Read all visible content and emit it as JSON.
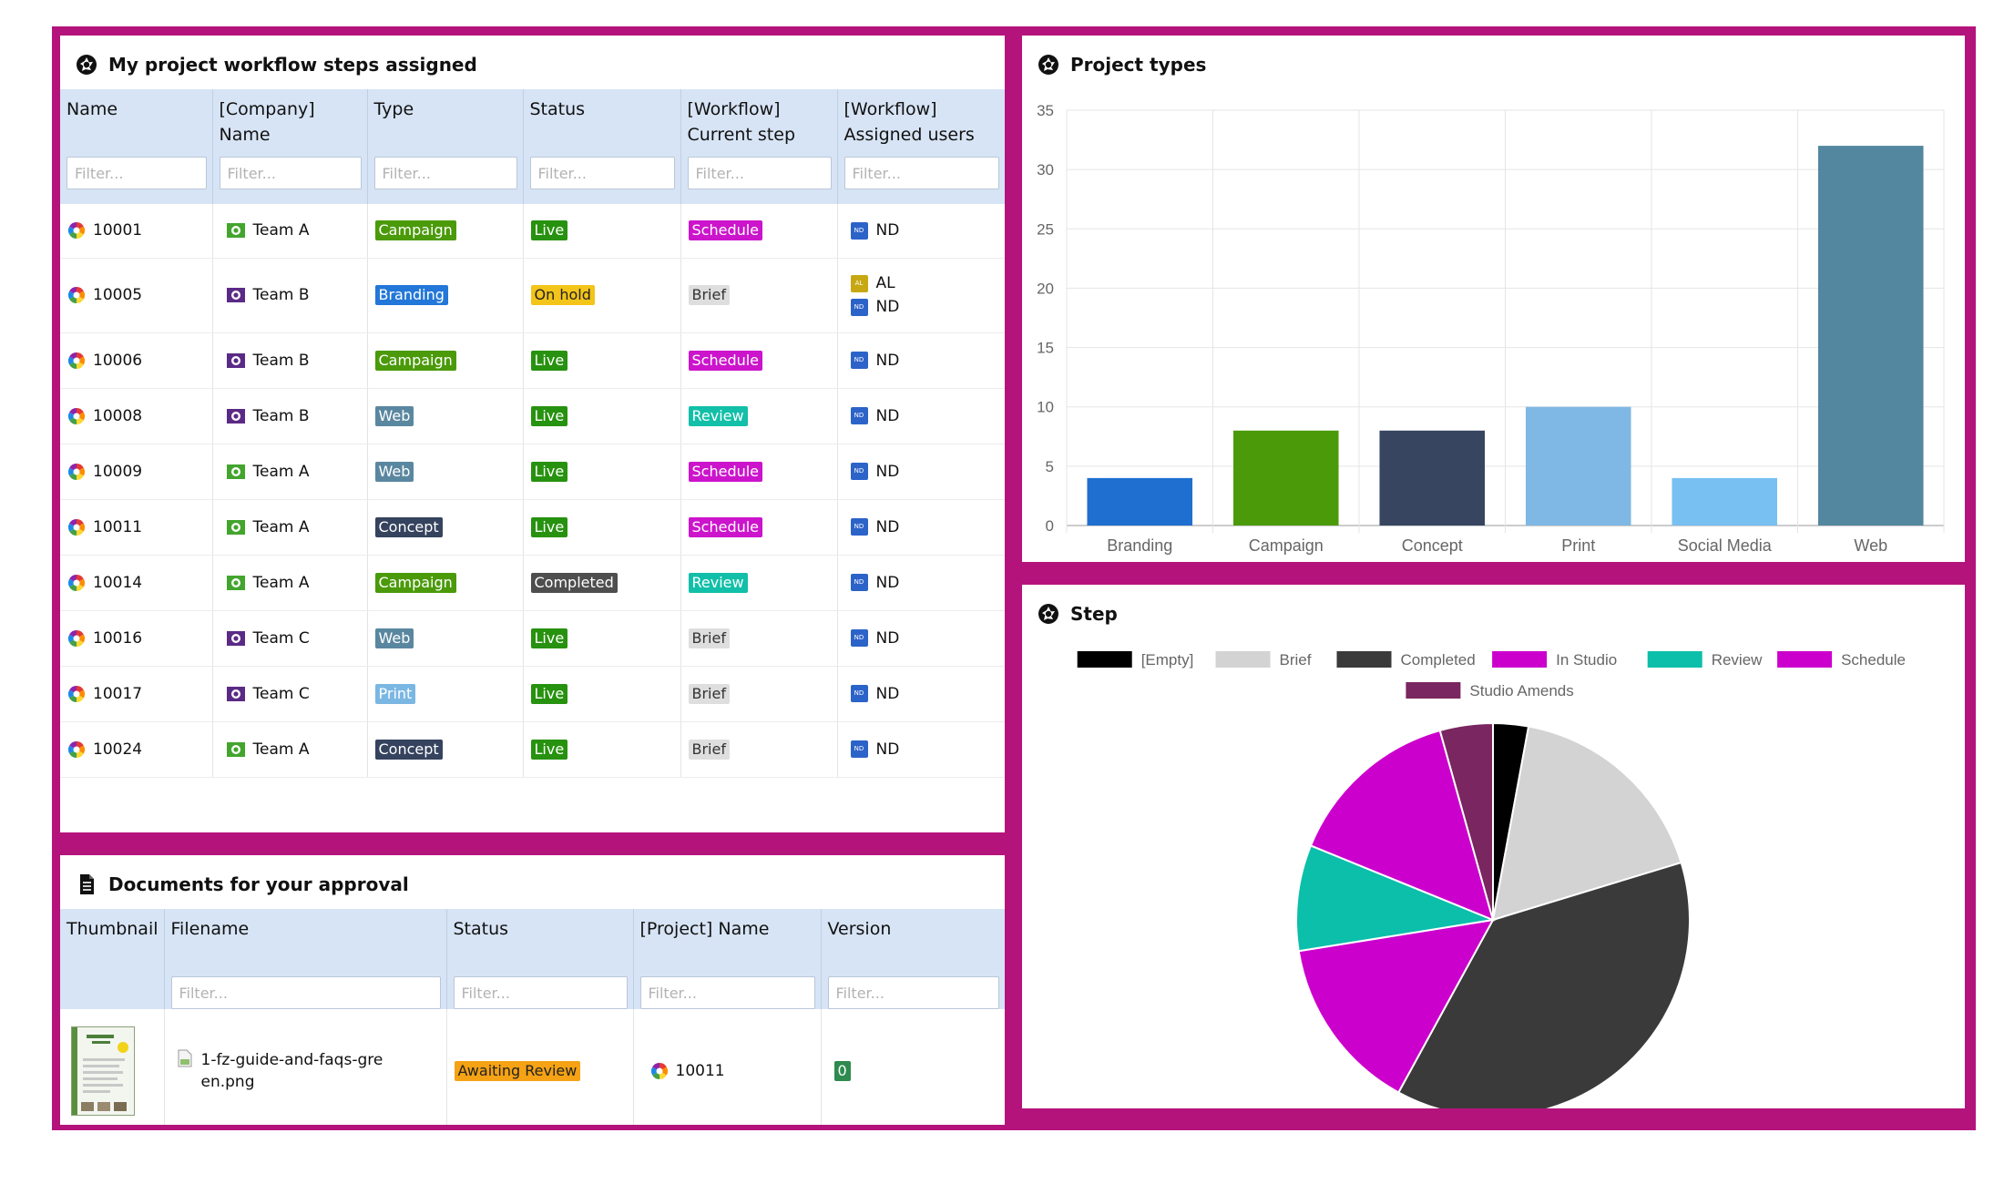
{
  "workflow_panel": {
    "title": "My project workflow steps assigned",
    "columns": [
      "Name",
      "[Company]\nName",
      "Type",
      "Status",
      "[Workflow]\nCurrent step",
      "[Workflow]\nAssigned users"
    ],
    "filter_placeholder": "Filter...",
    "rows": [
      {
        "name": "10001",
        "team": "Team A",
        "team_color": "#43a52e",
        "type": "Campaign",
        "type_color": "#4b9a0a",
        "status": "Live",
        "status_color": "#27920f",
        "step": "Schedule",
        "step_color": "#cc14cc",
        "users": [
          {
            "initials": "ND",
            "color": "#2c63c9"
          }
        ]
      },
      {
        "name": "10005",
        "team": "Team B",
        "team_color": "#5b2a86",
        "type": "Branding",
        "type_color": "#2277d8",
        "status": "On hold",
        "status_color": "#f3c41a",
        "step": "Brief",
        "step_color": "#dedede",
        "users": [
          {
            "initials": "AL",
            "color": "#c8a812"
          },
          {
            "initials": "ND",
            "color": "#2c63c9"
          }
        ]
      },
      {
        "name": "10006",
        "team": "Team B",
        "team_color": "#5b2a86",
        "type": "Campaign",
        "type_color": "#4b9a0a",
        "status": "Live",
        "status_color": "#27920f",
        "step": "Schedule",
        "step_color": "#cc14cc",
        "users": [
          {
            "initials": "ND",
            "color": "#2c63c9"
          }
        ]
      },
      {
        "name": "10008",
        "team": "Team B",
        "team_color": "#5b2a86",
        "type": "Web",
        "type_color": "#5a87a0",
        "status": "Live",
        "status_color": "#27920f",
        "step": "Review",
        "step_color": "#12bfa8",
        "users": [
          {
            "initials": "ND",
            "color": "#2c63c9"
          }
        ]
      },
      {
        "name": "10009",
        "team": "Team A",
        "team_color": "#43a52e",
        "type": "Web",
        "type_color": "#5a87a0",
        "status": "Live",
        "status_color": "#27920f",
        "step": "Schedule",
        "step_color": "#cc14cc",
        "users": [
          {
            "initials": "ND",
            "color": "#2c63c9"
          }
        ]
      },
      {
        "name": "10011",
        "team": "Team A",
        "team_color": "#43a52e",
        "type": "Concept",
        "type_color": "#36435e",
        "status": "Live",
        "status_color": "#27920f",
        "step": "Schedule",
        "step_color": "#cc14cc",
        "users": [
          {
            "initials": "ND",
            "color": "#2c63c9"
          }
        ]
      },
      {
        "name": "10014",
        "team": "Team A",
        "team_color": "#43a52e",
        "type": "Campaign",
        "type_color": "#4b9a0a",
        "status": "Completed",
        "status_color": "#4e4e4e",
        "step": "Review",
        "step_color": "#12bfa8",
        "users": [
          {
            "initials": "ND",
            "color": "#2c63c9"
          }
        ]
      },
      {
        "name": "10016",
        "team": "Team C",
        "team_color": "#5b2a86",
        "type": "Web",
        "type_color": "#5a87a0",
        "status": "Live",
        "status_color": "#27920f",
        "step": "Brief",
        "step_color": "#dedede",
        "users": [
          {
            "initials": "ND",
            "color": "#2c63c9"
          }
        ]
      },
      {
        "name": "10017",
        "team": "Team C",
        "team_color": "#5b2a86",
        "type": "Print",
        "type_color": "#7bb7e3",
        "status": "Live",
        "status_color": "#27920f",
        "step": "Brief",
        "step_color": "#dedede",
        "users": [
          {
            "initials": "ND",
            "color": "#2c63c9"
          }
        ]
      },
      {
        "name": "10024",
        "team": "Team A",
        "team_color": "#43a52e",
        "type": "Concept",
        "type_color": "#36435e",
        "status": "Live",
        "status_color": "#27920f",
        "step": "Brief",
        "step_color": "#dedede",
        "users": [
          {
            "initials": "ND",
            "color": "#2c63c9"
          }
        ]
      }
    ]
  },
  "documents_panel": {
    "title": "Documents for your approval",
    "columns": [
      "Thumbnail",
      "Filename",
      "Status",
      "[Project] Name",
      "Version"
    ],
    "filter_placeholder": "Filter...",
    "rows": [
      {
        "filename": "1-fz-guide-and-faqs-green.png",
        "status": "Awaiting Review",
        "status_color": "#f5a214",
        "project": "10011",
        "version": "0",
        "version_color": "#2e8a4e"
      }
    ]
  },
  "types_panel": {
    "title": "Project types"
  },
  "step_panel": {
    "title": "Step"
  },
  "chart_data": [
    {
      "type": "bar",
      "title": "Project types",
      "categories": [
        "Branding",
        "Campaign",
        "Concept",
        "Print",
        "Social Media",
        "Web"
      ],
      "values": [
        4,
        8,
        8,
        10,
        4,
        32
      ],
      "colors": [
        "#1f6fd0",
        "#4b9a0a",
        "#374560",
        "#7fb8e4",
        "#78c0f2",
        "#53879f"
      ],
      "ylim": [
        0,
        35
      ],
      "yticks": [
        0,
        5,
        10,
        15,
        20,
        25,
        30,
        35
      ],
      "grid": true,
      "xlabel": "",
      "ylabel": ""
    },
    {
      "type": "pie",
      "title": "Step",
      "legend_position": "top",
      "labels": [
        "[Empty]",
        "Brief",
        "Completed",
        "In Studio",
        "Review",
        "Schedule",
        "Studio Amends"
      ],
      "colors": [
        "#000000",
        "#d3d3d3",
        "#3a3a3a",
        "#cc00cc",
        "#0bbfaa",
        "#cc00cc",
        "#7a2660"
      ],
      "legend_rows": [
        [
          0,
          1,
          2,
          3,
          4,
          5
        ],
        [
          6
        ]
      ],
      "slices": [
        {
          "label": "[Empty]",
          "value": 1,
          "color": "#000000"
        },
        {
          "label": "Brief",
          "value": 6,
          "color": "#d3d3d3"
        },
        {
          "label": "Completed",
          "value": 13,
          "color": "#3a3a3a"
        },
        {
          "label": "In Studio",
          "value": 5,
          "color": "#cc00cc"
        },
        {
          "label": "Review",
          "value": 3,
          "color": "#0bbfaa"
        },
        {
          "label": "Schedule",
          "value": 5,
          "color": "#cc00cc"
        },
        {
          "label": "Studio Amends",
          "value": 1.5,
          "color": "#7a2660"
        }
      ]
    }
  ]
}
